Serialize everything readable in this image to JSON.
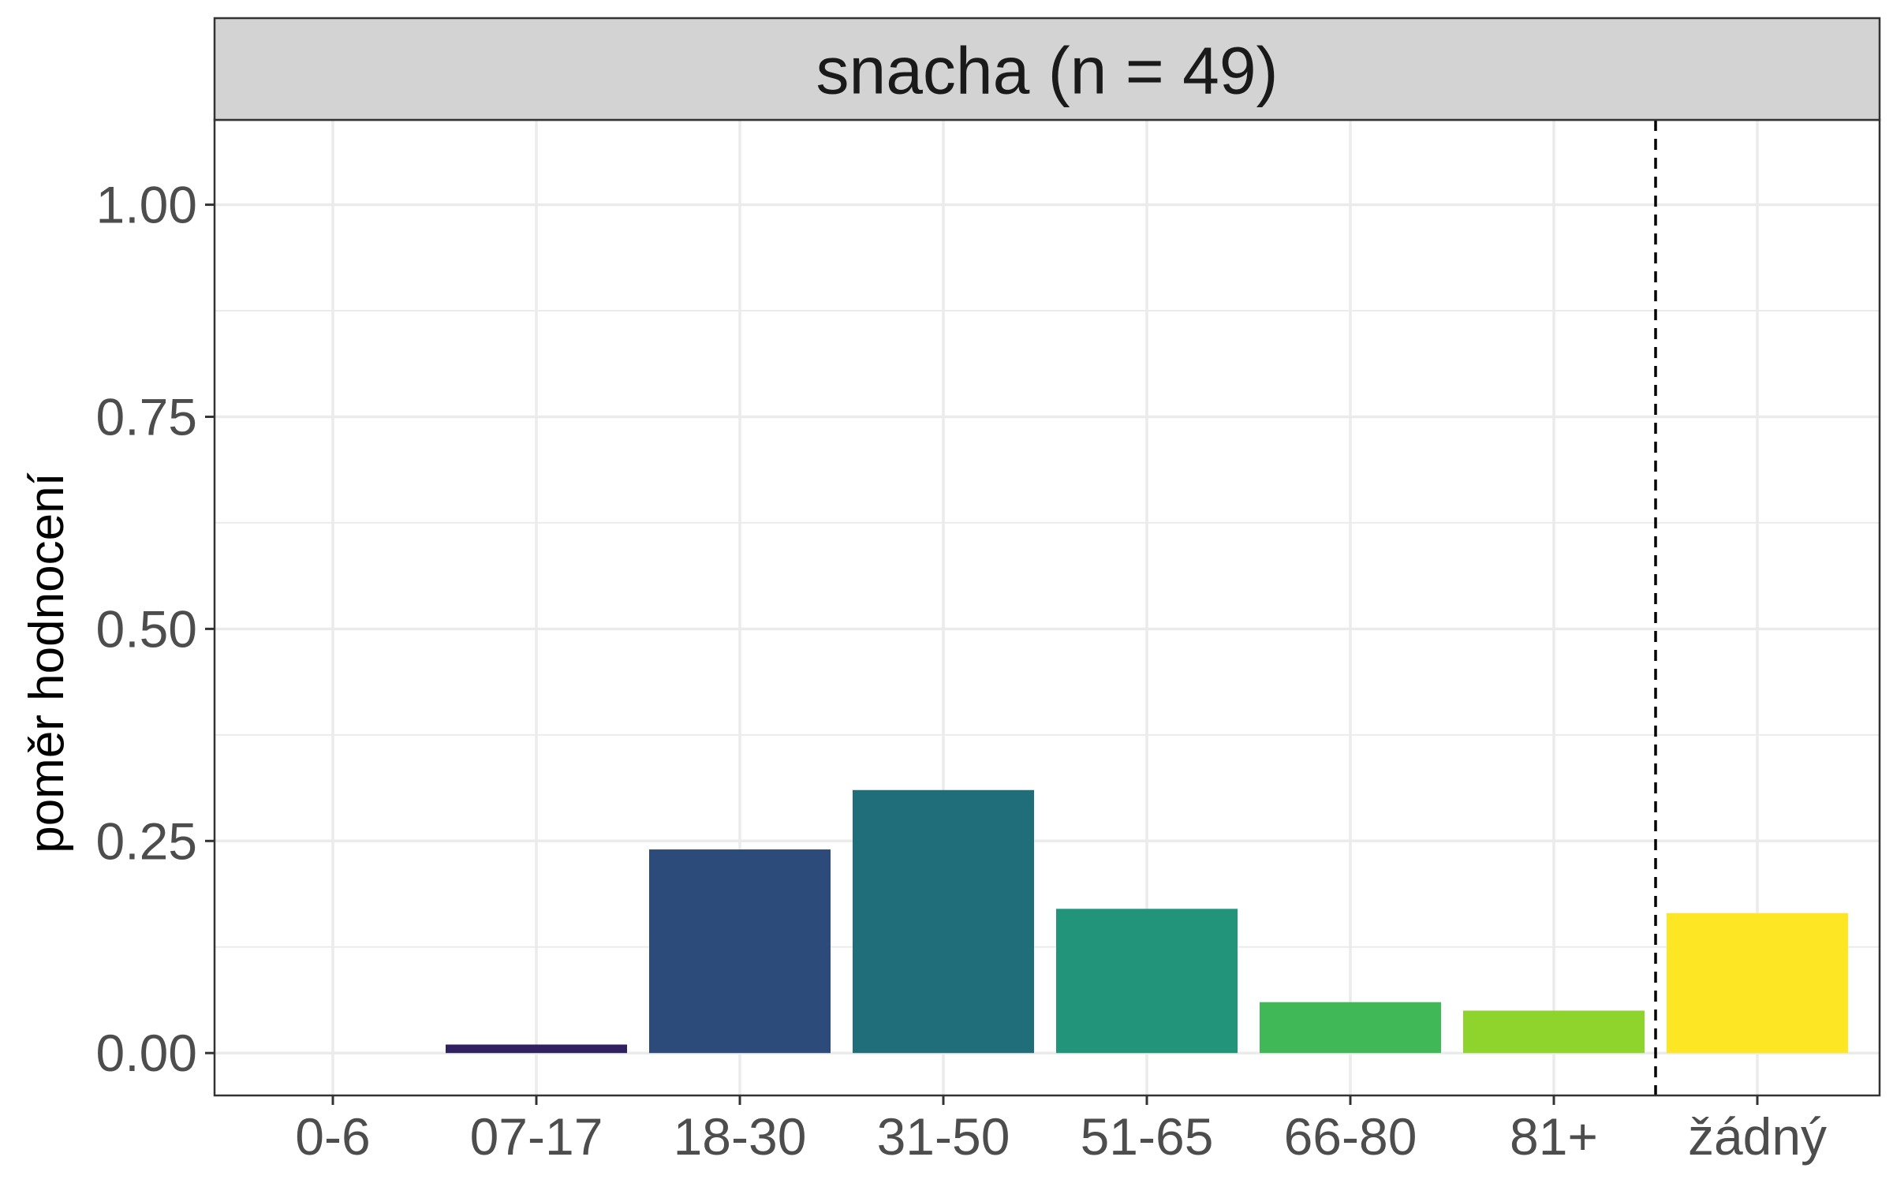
{
  "chart_data": {
    "type": "bar",
    "facet_title": "snacha (n = 49)",
    "xlabel": "",
    "ylabel": "poměr hodnocení",
    "categories": [
      "0-6",
      "07-17",
      "18-30",
      "31-50",
      "51-65",
      "66-80",
      "81+",
      "žádný"
    ],
    "values": [
      0.0,
      0.01,
      0.24,
      0.31,
      0.17,
      0.06,
      0.05,
      0.165
    ],
    "colors": [
      "#440154",
      "#30205f",
      "#2c4a7a",
      "#216e7b",
      "#22947a",
      "#41b858",
      "#8fd42d",
      "#fde725"
    ],
    "ylim": [
      -0.05,
      1.1
    ],
    "y_ticks": [
      0,
      0.25,
      0.5,
      0.75,
      1.0
    ],
    "y_tick_labels": [
      "0.00",
      "0.25",
      "0.50",
      "0.75",
      "1.00"
    ],
    "y_minor_ticks": [
      0.125,
      0.375,
      0.625,
      0.875
    ],
    "reference_line": {
      "between": [
        "81+",
        "žádný"
      ],
      "style": "dashed"
    },
    "grid": true,
    "legend": "none",
    "theme": {
      "strip_fill": "#d3d3d3",
      "grid_color": "#ebebeb",
      "panel_border": "#333333",
      "dashed_line": "#000000"
    }
  }
}
